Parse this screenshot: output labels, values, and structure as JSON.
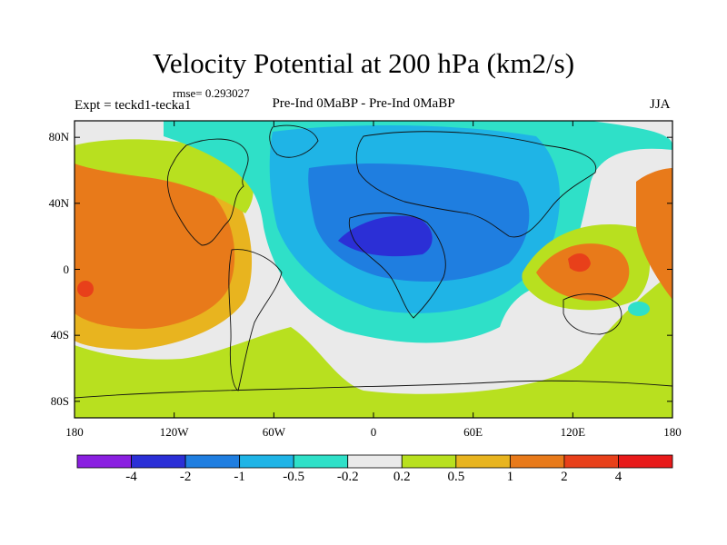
{
  "title": "Velocity Potential at 200 hPa (km2/s)",
  "rmse": "rmse= 0.293027",
  "expt": "Expt = teckd1-tecka1",
  "difference_label": "Pre-Ind 0MaBP - Pre-Ind 0MaBP",
  "season": "JJA",
  "lat_ticks": [
    {
      "label": "80N",
      "lat": 80
    },
    {
      "label": "40N",
      "lat": 40
    },
    {
      "label": "0",
      "lat": 0
    },
    {
      "label": "40S",
      "lat": -40
    },
    {
      "label": "80S",
      "lat": -80
    }
  ],
  "lon_ticks": [
    {
      "label": "180",
      "lon": -180
    },
    {
      "label": "120W",
      "lon": -120
    },
    {
      "label": "60W",
      "lon": -60
    },
    {
      "label": "0",
      "lon": 0
    },
    {
      "label": "60E",
      "lon": 60
    },
    {
      "label": "120E",
      "lon": 120
    },
    {
      "label": "180",
      "lon": 180
    }
  ],
  "colorbar": {
    "colors": [
      "#8a1fe0",
      "#2b2fd6",
      "#1f7ee0",
      "#1fb4e6",
      "#2fe0c8",
      "#eaeaea",
      "#b8e01f",
      "#e8b41f",
      "#e87a1a",
      "#e8401a",
      "#e81a1a"
    ],
    "labels": [
      "-4",
      "-2",
      "-1",
      "-0.5",
      "-0.2",
      "0.2",
      "0.5",
      "1",
      "2",
      "4"
    ]
  },
  "colors": {
    "orange": "#e87a1a",
    "yellow": "#e8b41f",
    "green": "#b8e01f",
    "white": "#eaeaea",
    "cyan": "#2fe0c8",
    "lightblue": "#1fb4e6",
    "blue": "#1f7ee0",
    "darkblue": "#2b2fd6",
    "red": "#e8401a"
  }
}
